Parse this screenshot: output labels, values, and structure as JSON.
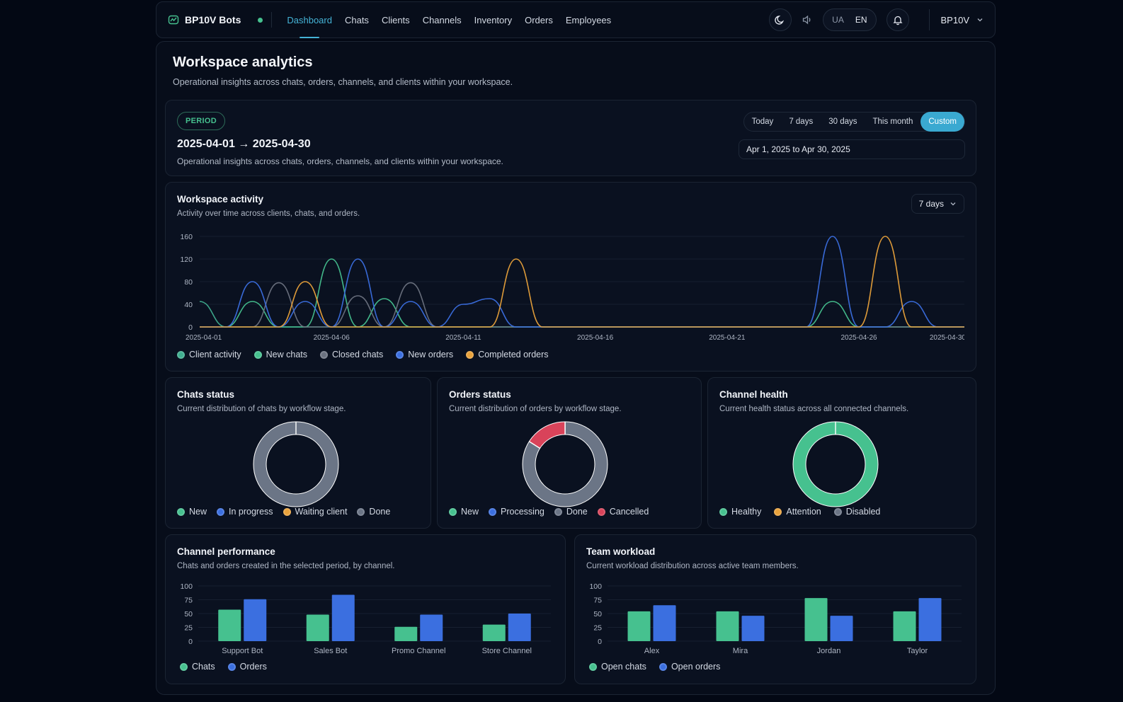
{
  "header": {
    "brand": "BP10V Bots",
    "nav": [
      "Dashboard",
      "Chats",
      "Clients",
      "Channels",
      "Inventory",
      "Orders",
      "Employees"
    ],
    "active_nav": "Dashboard",
    "lang": [
      "UA",
      "EN"
    ],
    "user": "BP10V"
  },
  "page": {
    "title": "Workspace analytics",
    "subtitle": "Operational insights across chats, orders, channels, and clients within your workspace."
  },
  "period": {
    "badge": "PERIOD",
    "range_from": "2025-04-01",
    "range_to": "2025-04-30",
    "arrow": "→",
    "subtitle": "Operational insights across chats, orders, channels, and clients within your workspace.",
    "presets": [
      "Today",
      "7 days",
      "30 days",
      "This month",
      "Custom"
    ],
    "active_preset": "Custom",
    "date_input": "Apr 1, 2025 to Apr 30, 2025"
  },
  "colors": {
    "client_activity": "#3fae8f",
    "new_chats": "#46c18f",
    "closed_chats": "#6b7280",
    "new_orders": "#3b6fe0",
    "completed_orders": "#e9a23b",
    "done_gray": "#6b7586",
    "cancelled": "#d9435a"
  },
  "chart_data": [
    {
      "type": "line",
      "title": "Workspace activity",
      "subtitle": "Activity over time across clients, chats, and orders.",
      "dropdown": "7 days",
      "x_ticks": [
        "2025-04-01",
        "2025-04-06",
        "2025-04-11",
        "2025-04-16",
        "2025-04-21",
        "2025-04-26",
        "2025-04-30"
      ],
      "y_ticks": [
        0,
        40,
        80,
        120,
        160
      ],
      "ylim": [
        0,
        160
      ],
      "legend": [
        "Client activity",
        "New chats",
        "Closed chats",
        "New orders",
        "Completed orders"
      ],
      "x": [
        "2025-04-01",
        "2025-04-02",
        "2025-04-03",
        "2025-04-04",
        "2025-04-05",
        "2025-04-06",
        "2025-04-07",
        "2025-04-08",
        "2025-04-09",
        "2025-04-10",
        "2025-04-11",
        "2025-04-12",
        "2025-04-13",
        "2025-04-14",
        "2025-04-15",
        "2025-04-16",
        "2025-04-17",
        "2025-04-18",
        "2025-04-19",
        "2025-04-20",
        "2025-04-21",
        "2025-04-22",
        "2025-04-23",
        "2025-04-24",
        "2025-04-25",
        "2025-04-26",
        "2025-04-27",
        "2025-04-28",
        "2025-04-29",
        "2025-04-30"
      ],
      "series": [
        {
          "name": "Client activity",
          "values": [
            45,
            0,
            0,
            0,
            0,
            0,
            0,
            0,
            0,
            0,
            0,
            0,
            0,
            0,
            0,
            0,
            0,
            0,
            0,
            0,
            0,
            0,
            0,
            0,
            0,
            0,
            0,
            0,
            0,
            0
          ]
        },
        {
          "name": "New chats",
          "values": [
            0,
            0,
            45,
            0,
            0,
            120,
            0,
            50,
            0,
            0,
            0,
            0,
            0,
            0,
            0,
            0,
            0,
            0,
            0,
            0,
            0,
            0,
            0,
            0,
            45,
            0,
            0,
            0,
            0,
            0
          ]
        },
        {
          "name": "Closed chats",
          "values": [
            0,
            0,
            0,
            78,
            0,
            0,
            55,
            0,
            78,
            0,
            0,
            0,
            0,
            0,
            0,
            0,
            0,
            0,
            0,
            0,
            0,
            0,
            0,
            0,
            0,
            0,
            0,
            0,
            0,
            0
          ]
        },
        {
          "name": "New orders",
          "values": [
            0,
            0,
            80,
            0,
            45,
            0,
            120,
            0,
            45,
            0,
            40,
            50,
            0,
            0,
            0,
            0,
            0,
            0,
            0,
            0,
            0,
            0,
            0,
            0,
            160,
            0,
            0,
            45,
            0,
            0
          ]
        },
        {
          "name": "Completed orders",
          "values": [
            0,
            0,
            0,
            0,
            80,
            0,
            0,
            0,
            0,
            0,
            0,
            0,
            120,
            0,
            0,
            0,
            0,
            0,
            0,
            0,
            0,
            0,
            0,
            0,
            0,
            0,
            160,
            0,
            0,
            0
          ]
        }
      ]
    },
    {
      "type": "pie",
      "title": "Chats status",
      "subtitle": "Current distribution of chats by workflow stage.",
      "categories": [
        "New",
        "In progress",
        "Waiting client",
        "Done"
      ],
      "values": [
        0,
        0,
        0,
        100
      ]
    },
    {
      "type": "pie",
      "title": "Orders status",
      "subtitle": "Current distribution of orders by workflow stage.",
      "categories": [
        "New",
        "Processing",
        "Done",
        "Cancelled"
      ],
      "values": [
        0,
        0,
        84,
        16
      ]
    },
    {
      "type": "pie",
      "title": "Channel health",
      "subtitle": "Current health status across all connected channels.",
      "categories": [
        "Healthy",
        "Attention",
        "Disabled"
      ],
      "values": [
        100,
        0,
        0
      ]
    },
    {
      "type": "bar",
      "title": "Channel performance",
      "subtitle": "Chats and orders created in the selected period, by channel.",
      "categories": [
        "Support Bot",
        "Sales Bot",
        "Promo Channel",
        "Store Channel"
      ],
      "y_ticks": [
        0,
        25,
        50,
        75,
        100
      ],
      "ylim": [
        0,
        100
      ],
      "series": [
        {
          "name": "Chats",
          "values": [
            57,
            48,
            26,
            30
          ]
        },
        {
          "name": "Orders",
          "values": [
            76,
            84,
            48,
            50
          ]
        }
      ]
    },
    {
      "type": "bar",
      "title": "Team workload",
      "subtitle": "Current workload distribution across active team members.",
      "categories": [
        "Alex",
        "Mira",
        "Jordan",
        "Taylor"
      ],
      "y_ticks": [
        0,
        25,
        50,
        75,
        100
      ],
      "ylim": [
        0,
        100
      ],
      "series": [
        {
          "name": "Open chats",
          "values": [
            54,
            54,
            78,
            54
          ]
        },
        {
          "name": "Open orders",
          "values": [
            65,
            46,
            46,
            78
          ]
        }
      ]
    }
  ]
}
